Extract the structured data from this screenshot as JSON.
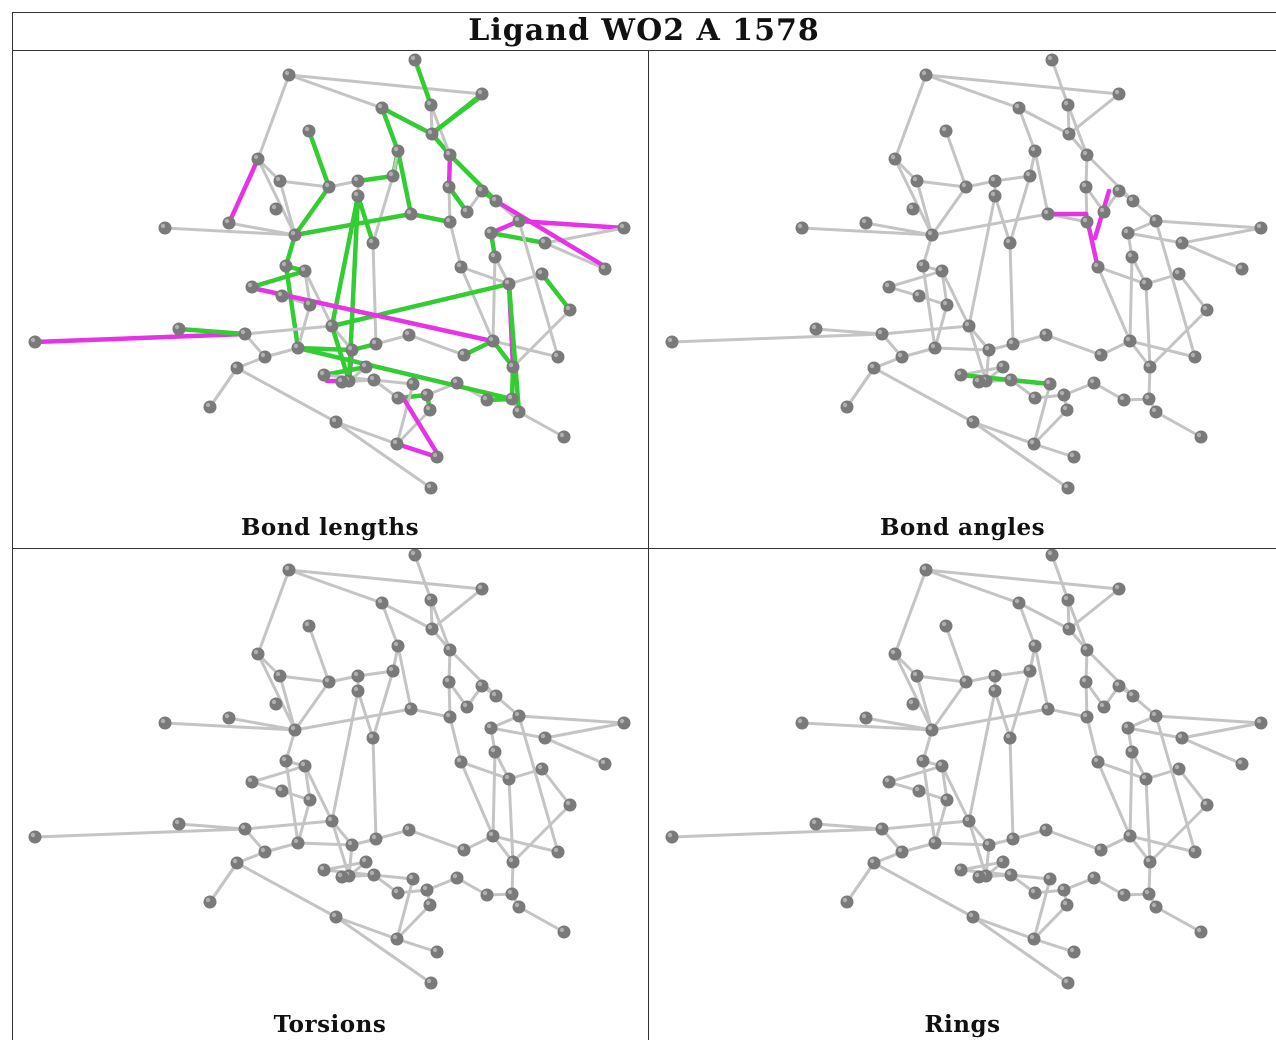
{
  "title": "Ligand WO2 A 1578",
  "panels": [
    {
      "key": "bond_lengths",
      "caption": "Bond lengths"
    },
    {
      "key": "bond_angles",
      "caption": "Bond angles"
    },
    {
      "key": "torsions",
      "caption": "Torsions"
    },
    {
      "key": "rings",
      "caption": "Rings"
    }
  ],
  "colors": {
    "bond_default": "#c4c4c4",
    "bond_outlier_green": "#33cc33",
    "bond_outlier_magenta": "#e633e6",
    "atom": "#7a7a7a",
    "atom_highlight": "#b0b0b0"
  }
}
